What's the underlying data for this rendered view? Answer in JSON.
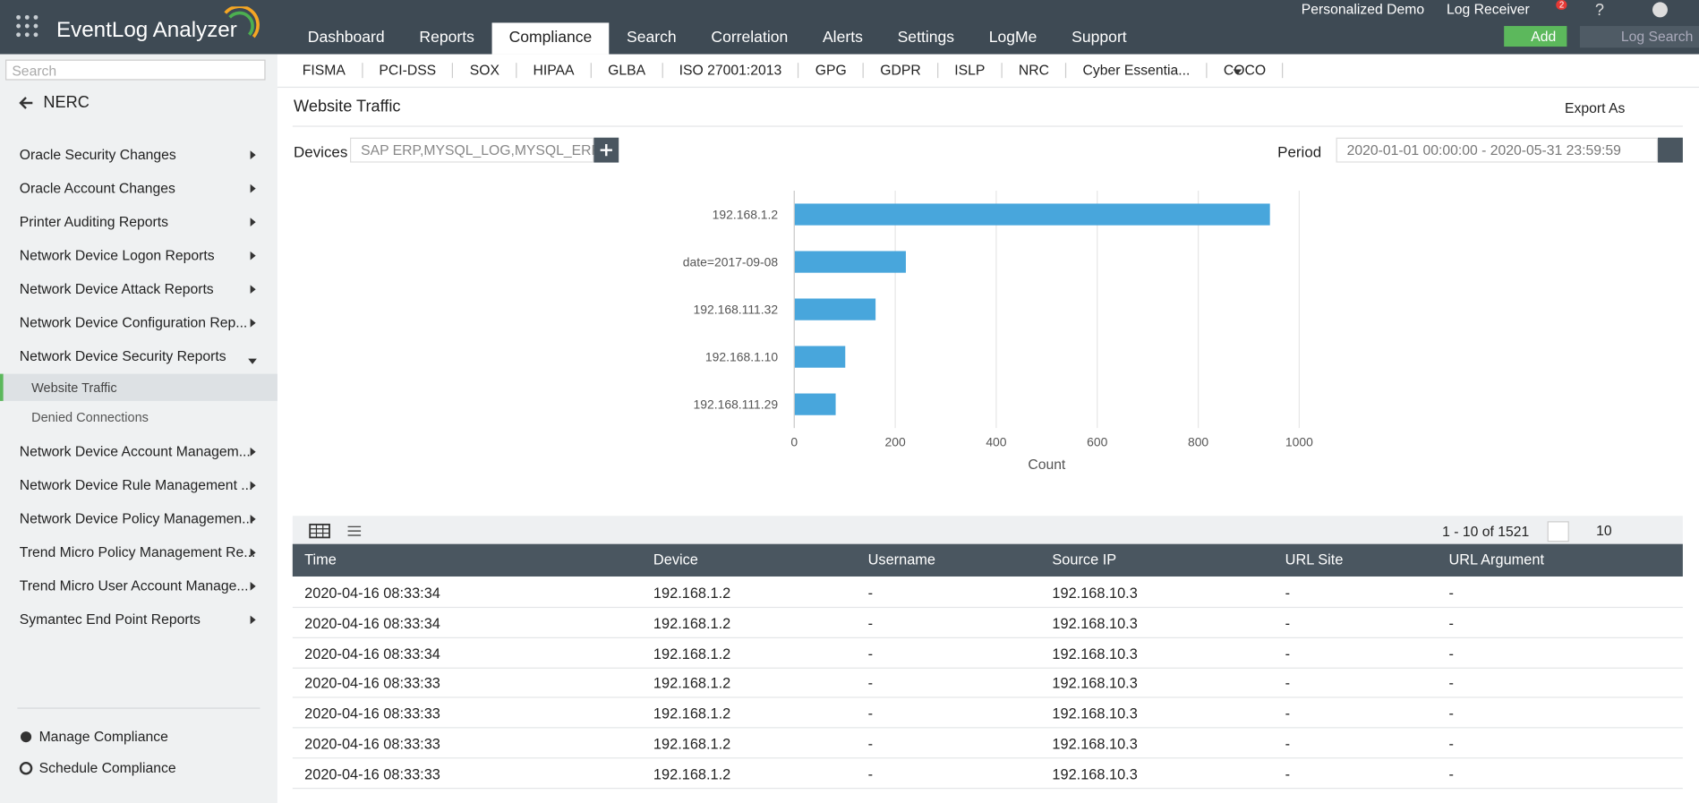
{
  "header": {
    "logo": "EventLog Analyzer",
    "nav": [
      "Dashboard",
      "Reports",
      "Compliance",
      "Search",
      "Correlation",
      "Alerts",
      "Settings",
      "LogMe",
      "Support"
    ],
    "top_links": [
      "Personalized Demo",
      "Log Receiver"
    ],
    "notifications": "2",
    "add_button": "Add",
    "search_placeholder": "Log Search"
  },
  "compliance_tabs": [
    "FISMA",
    "PCI-DSS",
    "SOX",
    "HIPAA",
    "GLBA",
    "ISO 27001:2013",
    "GPG",
    "GDPR",
    "ISLP",
    "NRC",
    "Cyber Essentia...",
    "COCO"
  ],
  "sidebar": {
    "search_placeholder": "Search",
    "title": "NERC",
    "items": [
      {
        "label": "Oracle Security Changes"
      },
      {
        "label": "Oracle Account Changes"
      },
      {
        "label": "Printer Auditing Reports"
      },
      {
        "label": "Network Device Logon Reports"
      },
      {
        "label": "Network Device Attack Reports"
      },
      {
        "label": "Network Device Configuration Rep..."
      },
      {
        "label": "Network Device Security Reports",
        "children": [
          "Website Traffic",
          "Denied Connections"
        ]
      },
      {
        "label": "Network Device Account Managem..."
      },
      {
        "label": "Network Device Rule Management ..."
      },
      {
        "label": "Network Device Policy Managemen..."
      },
      {
        "label": "Trend Micro Policy Management Re..."
      },
      {
        "label": "Trend Micro User Account Manage..."
      },
      {
        "label": "Symantec End Point Reports"
      }
    ],
    "footer": [
      "Manage Compliance",
      "Schedule Compliance"
    ]
  },
  "report": {
    "title": "Website Traffic",
    "export": "Export As",
    "devices_label": "Devices",
    "devices_value": "SAP ERP,MYSQL_LOG,MYSQL_ERR...",
    "period_label": "Period",
    "period_value": "2020-01-01 00:00:00 - 2020-05-31 23:59:59"
  },
  "chart_data": {
    "type": "bar",
    "orientation": "horizontal",
    "categories": [
      "192.168.1.2",
      "date=2017-09-08",
      "192.168.111.32",
      "192.168.1.10",
      "192.168.111.29"
    ],
    "values": [
      942,
      221,
      161,
      101,
      82
    ],
    "color": "#48a6dc",
    "xlim": [
      0,
      1000
    ],
    "xticks": [
      0,
      200,
      400,
      600,
      800,
      1000
    ],
    "x_label": "Count",
    "grid": true
  },
  "table": {
    "pagination": "1 - 10 of 1521",
    "page_size": "10",
    "columns": [
      "Time",
      "Device",
      "Username",
      "Source IP",
      "URL Site",
      "URL Argument"
    ],
    "rows": [
      [
        "2020-04-16 08:33:34",
        "192.168.1.2",
        "-",
        "192.168.10.3",
        "-",
        "-"
      ],
      [
        "2020-04-16 08:33:34",
        "192.168.1.2",
        "-",
        "192.168.10.3",
        "-",
        "-"
      ],
      [
        "2020-04-16 08:33:34",
        "192.168.1.2",
        "-",
        "192.168.10.3",
        "-",
        "-"
      ],
      [
        "2020-04-16 08:33:33",
        "192.168.1.2",
        "-",
        "192.168.10.3",
        "-",
        "-"
      ],
      [
        "2020-04-16 08:33:33",
        "192.168.1.2",
        "-",
        "192.168.10.3",
        "-",
        "-"
      ],
      [
        "2020-04-16 08:33:33",
        "192.168.1.2",
        "-",
        "192.168.10.3",
        "-",
        "-"
      ],
      [
        "2020-04-16 08:33:33",
        "192.168.1.2",
        "-",
        "192.168.10.3",
        "-",
        "-"
      ]
    ]
  }
}
